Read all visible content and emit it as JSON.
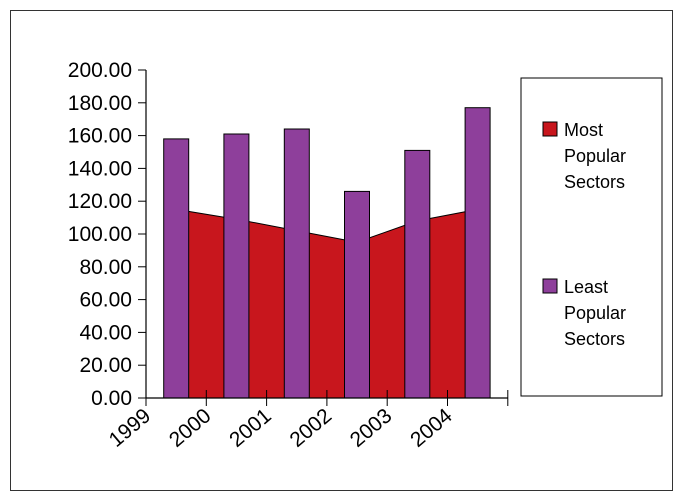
{
  "chart_data": {
    "type": "bar",
    "categories": [
      "1999",
      "2000",
      "2001",
      "2002",
      "2003",
      "2004"
    ],
    "series": [
      {
        "name": "Most Popular Sectors",
        "type": "area",
        "color": "#c8161d",
        "x": [
          1999.5,
          2000.5,
          2001.5,
          2002.5,
          2003.5,
          2004.5
        ],
        "values": [
          115,
          109,
          102,
          95,
          108,
          115
        ]
      },
      {
        "name": "Least Popular Sectors",
        "type": "bar",
        "color": "#8e3f9b",
        "values": [
          158,
          161,
          164,
          126,
          151,
          177
        ]
      }
    ],
    "ylim": [
      0,
      200
    ],
    "yticks": [
      "0.00",
      "20.00",
      "40.00",
      "60.00",
      "80.00",
      "100.00",
      "120.00",
      "140.00",
      "160.00",
      "180.00",
      "200.00"
    ],
    "legend": {
      "position": "right",
      "items": [
        {
          "lines": [
            "Most",
            "Popular",
            "Sectors"
          ],
          "color": "#c8161d"
        },
        {
          "lines": [
            "Least",
            "Popular",
            "Sectors"
          ],
          "color": "#8e3f9b"
        }
      ]
    },
    "grid": false
  }
}
